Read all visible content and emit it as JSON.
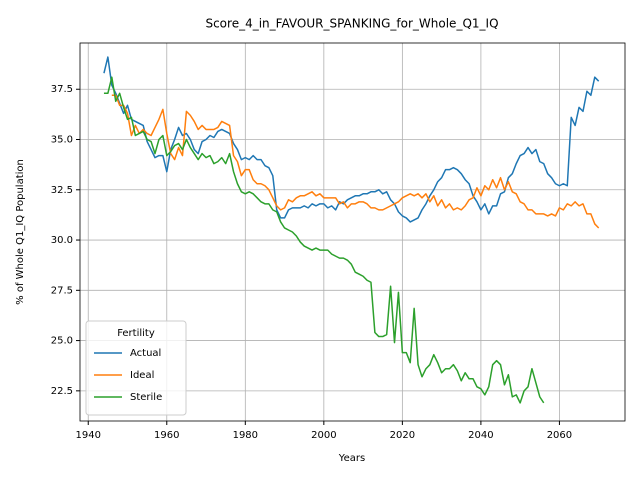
{
  "chart_data": {
    "type": "line",
    "title": "Score_4_in_FAVOUR_SPANKING_for_Whole_Q1_IQ",
    "x_label": "Years",
    "y_label": "% of Whole Q1_IQ Population",
    "legend_title": "Fertility",
    "legend_loc": "lower left",
    "grid": true,
    "xlim": [
      1937.9,
      2076.7
    ],
    "ylim": [
      21.0,
      39.8
    ],
    "xticks": [
      1940,
      1960,
      1980,
      2000,
      2020,
      2040,
      2060
    ],
    "yticks": [
      22.5,
      {
        "value": 25,
        "label": "25.0"
      },
      27.5,
      {
        "value": 30,
        "label": "30.0"
      },
      32.5,
      {
        "value": 35,
        "label": "35.0"
      },
      37.5
    ],
    "x": [
      1944,
      1945,
      1946,
      1947,
      1948,
      1949,
      1950,
      1951,
      1952,
      1953,
      1954,
      1955,
      1956,
      1957,
      1958,
      1959,
      1960,
      1961,
      1962,
      1963,
      1964,
      1965,
      1966,
      1967,
      1968,
      1969,
      1970,
      1971,
      1972,
      1973,
      1974,
      1975,
      1976,
      1977,
      1978,
      1979,
      1980,
      1981,
      1982,
      1983,
      1984,
      1985,
      1986,
      1987,
      1988,
      1989,
      1990,
      1991,
      1992,
      1993,
      1994,
      1995,
      1996,
      1997,
      1998,
      1999,
      2000,
      2001,
      2002,
      2003,
      2004,
      2005,
      2006,
      2007,
      2008,
      2009,
      2010,
      2011,
      2012,
      2013,
      2014,
      2015,
      2016,
      2017,
      2018,
      2019,
      2020,
      2021,
      2022,
      2023,
      2024,
      2025,
      2026,
      2027,
      2028,
      2029,
      2030,
      2031,
      2032,
      2033,
      2034,
      2035,
      2036,
      2037,
      2038,
      2039,
      2040,
      2041,
      2042,
      2043,
      2044,
      2045,
      2046,
      2047,
      2048,
      2049,
      2050,
      2051,
      2052,
      2053,
      2054,
      2055,
      2056,
      2057,
      2058,
      2059,
      2060,
      2061,
      2062,
      2063,
      2064,
      2065,
      2066,
      2067,
      2068,
      2069,
      2070
    ],
    "series": [
      {
        "name": "Actual",
        "color": "#1f77b4",
        "values": [
          38.3,
          39.1,
          37.7,
          37.3,
          36.8,
          36.3,
          36.7,
          36.0,
          35.9,
          35.8,
          35.7,
          34.9,
          34.5,
          34.1,
          34.2,
          34.2,
          33.4,
          34.5,
          35.0,
          35.6,
          35.2,
          35.3,
          35.0,
          34.5,
          34.3,
          34.9,
          35.0,
          35.2,
          35.1,
          35.4,
          35.5,
          35.4,
          35.3,
          34.8,
          34.5,
          34.0,
          34.1,
          34.0,
          34.2,
          34.0,
          34.0,
          33.7,
          33.6,
          33.2,
          31.5,
          31.1,
          31.1,
          31.5,
          31.6,
          31.6,
          31.6,
          31.7,
          31.6,
          31.8,
          31.7,
          31.8,
          31.8,
          31.6,
          31.7,
          31.5,
          31.9,
          31.8,
          32.0,
          32.1,
          32.2,
          32.2,
          32.3,
          32.3,
          32.4,
          32.4,
          32.5,
          32.3,
          32.4,
          32.0,
          31.8,
          31.4,
          31.2,
          31.1,
          30.9,
          31.0,
          31.1,
          31.5,
          31.8,
          32.2,
          32.5,
          32.9,
          33.1,
          33.5,
          33.5,
          33.6,
          33.5,
          33.3,
          33.0,
          32.8,
          32.2,
          31.9,
          31.5,
          31.8,
          31.3,
          31.7,
          31.7,
          32.3,
          32.4,
          33.1,
          33.3,
          33.8,
          34.2,
          34.3,
          34.6,
          34.3,
          34.5,
          33.9,
          33.8,
          33.3,
          33.1,
          32.8,
          32.7,
          32.8,
          32.7,
          36.1,
          35.7,
          36.6,
          36.4,
          37.4,
          37.2,
          38.1,
          37.9
        ]
      },
      {
        "name": "Ideal",
        "color": "#ff7f0e",
        "values": [
          null,
          null,
          37.2,
          37.2,
          36.7,
          36.7,
          36.3,
          35.2,
          35.7,
          35.3,
          35.5,
          35.3,
          35.2,
          35.6,
          36.0,
          36.5,
          35.3,
          34.3,
          34.0,
          34.6,
          34.2,
          36.4,
          36.2,
          35.9,
          35.5,
          35.7,
          35.5,
          35.5,
          35.5,
          35.6,
          35.9,
          35.8,
          35.7,
          34.2,
          33.9,
          33.2,
          33.5,
          33.5,
          33.0,
          32.8,
          32.8,
          32.7,
          32.5,
          32.1,
          31.7,
          31.5,
          31.6,
          32.0,
          31.9,
          32.1,
          32.2,
          32.2,
          32.3,
          32.4,
          32.2,
          32.3,
          32.1,
          32.1,
          32.1,
          32.1,
          31.8,
          31.9,
          31.6,
          31.8,
          31.8,
          31.9,
          31.9,
          31.8,
          31.6,
          31.6,
          31.5,
          31.5,
          31.6,
          31.7,
          31.8,
          31.9,
          32.1,
          32.2,
          32.3,
          32.2,
          32.3,
          32.1,
          32.3,
          31.9,
          32.2,
          31.7,
          32.0,
          31.6,
          31.8,
          31.5,
          31.6,
          31.5,
          31.7,
          32.0,
          32.1,
          32.6,
          32.2,
          32.7,
          32.5,
          33.0,
          32.6,
          33.1,
          32.5,
          32.9,
          32.4,
          32.3,
          31.9,
          31.8,
          31.5,
          31.5,
          31.3,
          31.3,
          31.3,
          31.2,
          31.3,
          31.2,
          31.6,
          31.5,
          31.8,
          31.7,
          31.9,
          31.7,
          31.8,
          31.3,
          31.3,
          30.8,
          30.6
        ]
      },
      {
        "name": "Sterile",
        "color": "#2ca02c",
        "values": [
          37.3,
          37.3,
          38.1,
          36.9,
          37.3,
          36.6,
          36.0,
          36.1,
          35.2,
          35.3,
          35.4,
          35.0,
          34.9,
          34.3,
          35.0,
          35.2,
          34.2,
          34.4,
          34.7,
          34.8,
          34.5,
          35.0,
          34.6,
          34.3,
          34.0,
          34.3,
          34.1,
          34.2,
          33.8,
          33.9,
          34.1,
          33.8,
          34.3,
          33.4,
          32.8,
          32.4,
          32.3,
          32.4,
          32.3,
          32.1,
          31.9,
          31.8,
          31.8,
          31.5,
          31.4,
          30.9,
          30.6,
          30.5,
          30.4,
          30.2,
          29.9,
          29.7,
          29.6,
          29.5,
          29.6,
          29.5,
          29.5,
          29.5,
          29.3,
          29.2,
          29.1,
          29.1,
          29.0,
          28.8,
          28.4,
          28.3,
          28.2,
          28.0,
          27.9,
          25.4,
          25.2,
          25.2,
          25.3,
          27.7,
          24.9,
          27.4,
          24.4,
          24.4,
          23.9,
          26.6,
          23.8,
          23.2,
          23.6,
          23.8,
          24.3,
          23.9,
          23.4,
          23.6,
          23.6,
          23.8,
          23.5,
          23.0,
          23.4,
          23.1,
          23.1,
          22.7,
          22.6,
          22.3,
          22.7,
          23.8,
          24.0,
          23.8,
          22.8,
          23.3,
          22.2,
          22.3,
          21.9,
          22.5,
          22.7,
          23.6,
          22.9,
          22.2,
          21.9,
          null,
          null,
          null,
          null,
          null,
          null,
          null,
          null,
          null,
          null,
          null,
          null,
          null,
          null
        ]
      }
    ]
  }
}
